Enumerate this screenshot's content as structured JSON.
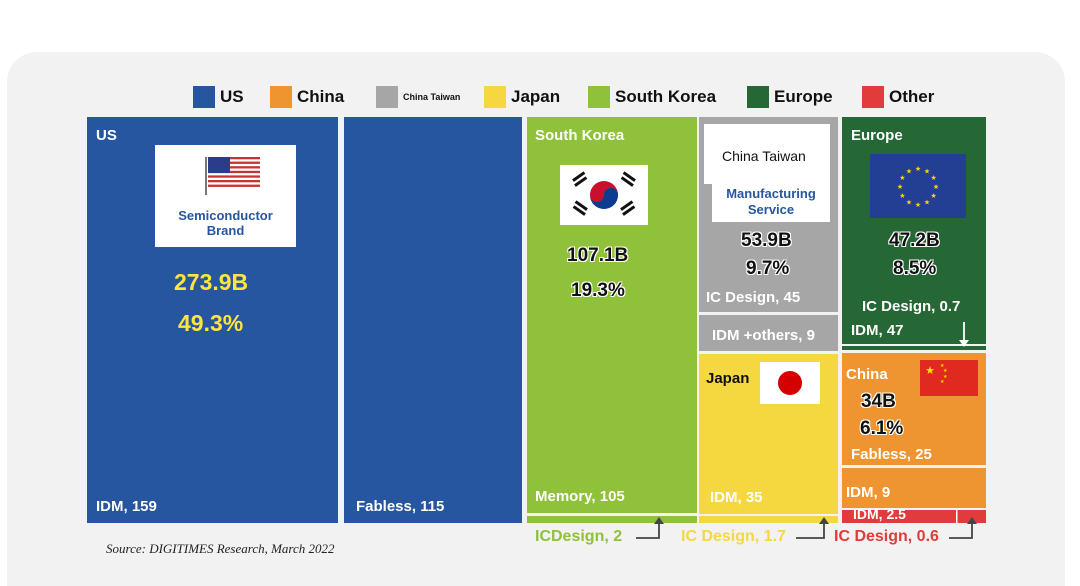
{
  "legend": [
    {
      "name": "US",
      "color": "#2756a0"
    },
    {
      "name": "China",
      "color": "#ee9430"
    },
    {
      "name": "China Taiwan",
      "color": "#a6a6a6"
    },
    {
      "name": "Japan",
      "color": "#f5d840"
    },
    {
      "name": "South Korea",
      "color": "#8fc13a"
    },
    {
      "name": "Europe",
      "color": "#256835"
    },
    {
      "name": "Other",
      "color": "#e23b3b"
    }
  ],
  "chart_data": {
    "type": "treemap",
    "units": "USD billions",
    "regions": [
      {
        "name": "US",
        "total_label": "273.9B",
        "share_label": "49.3%",
        "total": 273.9,
        "share": 49.3,
        "segments": [
          {
            "label": "IDM, 159",
            "value": 159
          },
          {
            "label": "Fabless, 115",
            "value": 115
          }
        ]
      },
      {
        "name": "South Korea",
        "total_label": "107.1B",
        "share_label": "19.3%",
        "total": 107.1,
        "share": 19.3,
        "segments": [
          {
            "label": "Memory, 105",
            "value": 105
          },
          {
            "label": "ICDesign, 2",
            "value": 2
          }
        ]
      },
      {
        "name": "China Taiwan",
        "total_label": "53.9B",
        "share_label": "9.7%",
        "total": 53.9,
        "share": 9.7,
        "segments": [
          {
            "label": "IC Design, 45",
            "value": 45
          },
          {
            "label": "IDM +others, 9",
            "value": 9
          }
        ]
      },
      {
        "name": "Europe",
        "total_label": "47.2B",
        "share_label": "8.5%",
        "total": 47.2,
        "share": 8.5,
        "segments": [
          {
            "label": "IDM, 47",
            "value": 47
          },
          {
            "label": "IC Design, 0.7",
            "value": 0.7
          }
        ]
      },
      {
        "name": "Japan",
        "segments": [
          {
            "label": "IDM, 35",
            "value": 35
          },
          {
            "label": "IC Design, 1.7",
            "value": 1.7
          }
        ]
      },
      {
        "name": "China",
        "total_label": "34B",
        "share_label": "6.1%",
        "total": 34,
        "share": 6.1,
        "segments": [
          {
            "label": "Fabless, 25",
            "value": 25
          },
          {
            "label": "IDM, 9",
            "value": 9
          }
        ]
      },
      {
        "name": "Other",
        "segments": [
          {
            "label": "IDM, 2.5",
            "value": 2.5
          },
          {
            "label": "IC Design, 0.6",
            "value": 0.6
          }
        ]
      }
    ]
  },
  "callouts": {
    "us_brand": "Semiconductor\nBrand",
    "tw_service": "Manufacturing\nService",
    "tw_box": "China Taiwan"
  },
  "source": "Source: DIGITIMES Research, March 2022"
}
